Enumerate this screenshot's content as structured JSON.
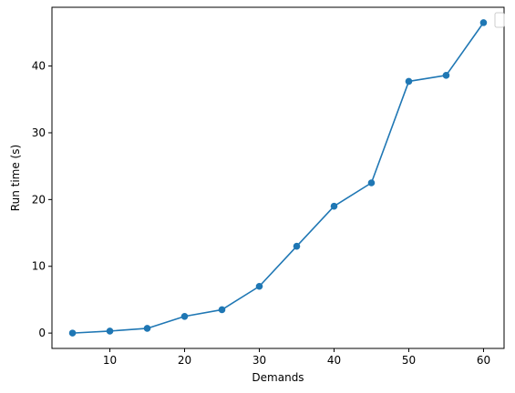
{
  "chart_data": {
    "type": "line",
    "title": "",
    "xlabel": "Demands",
    "ylabel": "Run time (s)",
    "x": [
      5,
      10,
      15,
      20,
      25,
      30,
      35,
      40,
      45,
      50,
      55,
      60
    ],
    "series": [
      {
        "values": [
          0.0,
          0.3,
          0.7,
          2.5,
          3.5,
          7.0,
          13.0,
          19.0,
          22.5,
          37.7,
          38.6,
          46.5
        ],
        "color": "#1f77b4",
        "marker": "circle"
      }
    ],
    "xlim": [
      2.25,
      62.75
    ],
    "ylim": [
      -2.3,
      48.8
    ],
    "xticks": [
      10,
      20,
      30,
      40,
      50,
      60
    ],
    "yticks": [
      0,
      10,
      20,
      30,
      40
    ],
    "xtick_labels": [
      "10",
      "20",
      "30",
      "40",
      "50",
      "60"
    ],
    "ytick_labels": [
      "0",
      "10",
      "20",
      "30",
      "40"
    ],
    "grid": false,
    "legend": {
      "placement": "top-right",
      "entries": []
    }
  }
}
